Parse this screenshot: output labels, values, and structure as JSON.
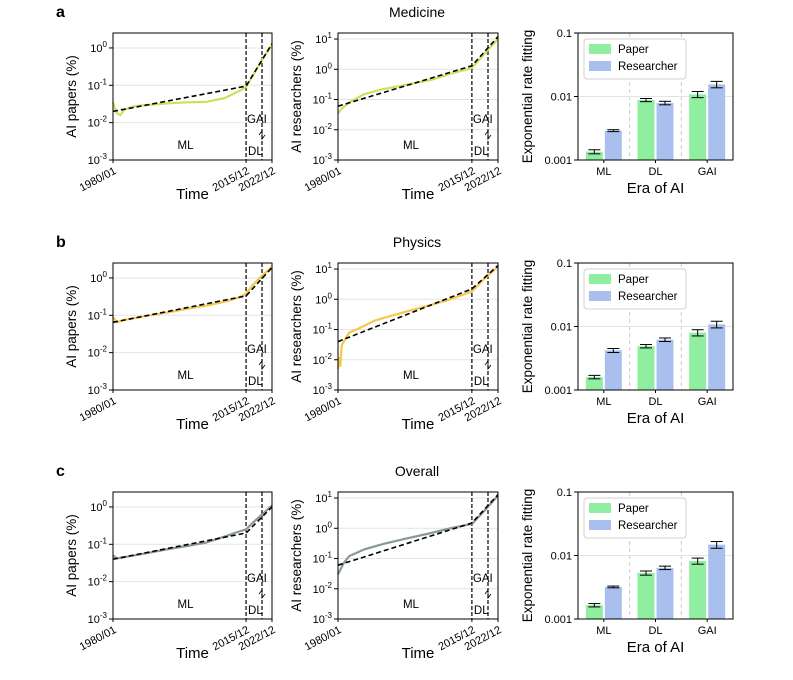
{
  "chart_data": [
    {
      "panel_label": "a",
      "row_title": "Medicine",
      "charts": [
        {
          "type": "line",
          "ylabel": "AI papers (%)",
          "xlabel": "Time",
          "x_tick_labels": [
            "1980/01",
            "2015/12",
            "2022/12"
          ],
          "y_tick_labels": [
            "10^-3",
            "10^-2",
            "10^-1",
            "10^0"
          ],
          "yscale": "log",
          "ylim_exp": [
            -3,
            0.4
          ],
          "eras": [
            "ML",
            "DL",
            "GAI"
          ],
          "color": "#c8e35a",
          "actual_x": [
            1980,
            1981,
            1982,
            1983,
            1986,
            1990,
            1995,
            2000,
            2005,
            2010,
            2014,
            2015.9,
            2018,
            2020,
            2022.9
          ],
          "actual_y": [
            0.035,
            0.018,
            0.016,
            0.022,
            0.028,
            0.03,
            0.033,
            0.035,
            0.036,
            0.045,
            0.07,
            0.09,
            0.2,
            0.45,
            1.2
          ],
          "fit_x": [
            1980,
            2015.9,
            2022.9
          ],
          "fit_y": [
            0.02,
            0.095,
            1.3
          ]
        },
        {
          "type": "line",
          "ylabel": "AI researchers (%)",
          "xlabel": "Time",
          "x_tick_labels": [
            "1980/01",
            "2015/12",
            "2022/12"
          ],
          "y_tick_labels": [
            "10^-3",
            "10^-2",
            "10^-1",
            "10^0",
            "10^1"
          ],
          "yscale": "log",
          "ylim_exp": [
            -3,
            1.2
          ],
          "eras": [
            "ML",
            "DL",
            "GAI"
          ],
          "color": "#c8e35a",
          "actual_x": [
            1980,
            1981,
            1983,
            1987,
            1992,
            1998,
            2005,
            2010,
            2015.9,
            2019,
            2022.9
          ],
          "actual_y": [
            0.035,
            0.05,
            0.08,
            0.15,
            0.22,
            0.3,
            0.45,
            0.7,
            1.1,
            3.0,
            10.0
          ],
          "fit_x": [
            1980,
            2015.9,
            2022.9
          ],
          "fit_y": [
            0.06,
            1.3,
            12.0
          ]
        },
        {
          "type": "bar",
          "ylabel": "Exponential rate fitting",
          "xlabel": "Era of AI",
          "categories": [
            "ML",
            "DL",
            "GAI"
          ],
          "y_tick_labels": [
            "0.001",
            "0.01",
            "0.1"
          ],
          "yscale": "log",
          "ylim": [
            0.001,
            0.1
          ],
          "legend": [
            "Paper",
            "Researcher"
          ],
          "series": [
            {
              "name": "Paper",
              "color": "#90eea0",
              "values": [
                0.00135,
                0.0088,
                0.0108
              ],
              "errors": [
                0.0001,
                0.0005,
                0.0012
              ]
            },
            {
              "name": "Researcher",
              "color": "#a9c0ee",
              "values": [
                0.0029,
                0.0079,
                0.0155
              ],
              "errors": [
                0.0001,
                0.0005,
                0.0018
              ]
            }
          ]
        }
      ]
    },
    {
      "panel_label": "b",
      "row_title": "Physics",
      "charts": [
        {
          "type": "line",
          "ylabel": "AI papers (%)",
          "xlabel": "Time",
          "x_tick_labels": [
            "1980/01",
            "2015/12",
            "2022/12"
          ],
          "y_tick_labels": [
            "10^-3",
            "10^-2",
            "10^-1",
            "10^0"
          ],
          "yscale": "log",
          "ylim_exp": [
            -3,
            0.4
          ],
          "eras": [
            "ML",
            "DL",
            "GAI"
          ],
          "color": "#f2c94c",
          "actual_x": [
            1980,
            1981,
            1983,
            1990,
            1995,
            2000,
            2005,
            2010,
            2014,
            2015.9,
            2018,
            2020,
            2022.9
          ],
          "actual_y": [
            0.09,
            0.065,
            0.075,
            0.1,
            0.12,
            0.15,
            0.18,
            0.23,
            0.3,
            0.38,
            0.7,
            1.1,
            2.0
          ],
          "fit_x": [
            1980,
            2015.9,
            2022.9
          ],
          "fit_y": [
            0.065,
            0.33,
            1.9
          ]
        },
        {
          "type": "line",
          "ylabel": "AI researchers (%)",
          "xlabel": "Time",
          "x_tick_labels": [
            "1980/01",
            "2015/12",
            "2022/12"
          ],
          "y_tick_labels": [
            "10^-3",
            "10^-2",
            "10^-1",
            "10^0",
            "10^1"
          ],
          "yscale": "log",
          "ylim_exp": [
            -3,
            1.2
          ],
          "eras": [
            "ML",
            "DL",
            "GAI"
          ],
          "color": "#f2c94c",
          "actual_x": [
            1980,
            1980.3,
            1980.6,
            1981,
            1982,
            1983,
            1985,
            1990,
            1995,
            2000,
            2005,
            2010,
            2015.9,
            2019,
            2022.9
          ],
          "actual_y": [
            0.005,
            0.012,
            0.006,
            0.03,
            0.05,
            0.08,
            0.1,
            0.2,
            0.3,
            0.45,
            0.65,
            1.0,
            1.8,
            4.5,
            12.0
          ],
          "fit_x": [
            1980,
            2015.9,
            2022.9
          ],
          "fit_y": [
            0.04,
            2.2,
            13.0
          ]
        },
        {
          "type": "bar",
          "ylabel": "Exponential rate fitting",
          "xlabel": "Era of AI",
          "categories": [
            "ML",
            "DL",
            "GAI"
          ],
          "y_tick_labels": [
            "0.001",
            "0.01",
            "0.1"
          ],
          "yscale": "log",
          "ylim": [
            0.001,
            0.1
          ],
          "legend": [
            "Paper",
            "Researcher"
          ],
          "series": [
            {
              "name": "Paper",
              "color": "#90eea0",
              "values": [
                0.0016,
                0.0049,
                0.008
              ],
              "errors": [
                0.0001,
                0.0003,
                0.0009
              ]
            },
            {
              "name": "Researcher",
              "color": "#a9c0ee",
              "values": [
                0.0042,
                0.0062,
                0.0108
              ],
              "errors": [
                0.0003,
                0.0004,
                0.0013
              ]
            }
          ]
        }
      ]
    },
    {
      "panel_label": "c",
      "row_title": "Overall",
      "charts": [
        {
          "type": "line",
          "ylabel": "AI papers (%)",
          "xlabel": "Time",
          "x_tick_labels": [
            "1980/01",
            "2015/12",
            "2022/12"
          ],
          "y_tick_labels": [
            "10^-3",
            "10^-2",
            "10^-1",
            "10^0"
          ],
          "yscale": "log",
          "ylim_exp": [
            -3,
            0.4
          ],
          "eras": [
            "ML",
            "DL",
            "GAI"
          ],
          "color": "#8a9a90",
          "actual_x": [
            1980,
            1981,
            1983,
            1990,
            1995,
            2000,
            2005,
            2010,
            2014,
            2015.9,
            2018,
            2020,
            2022.9
          ],
          "actual_y": [
            0.05,
            0.042,
            0.045,
            0.06,
            0.075,
            0.09,
            0.11,
            0.16,
            0.22,
            0.25,
            0.4,
            0.6,
            1.1
          ],
          "fit_x": [
            1980,
            2015.9,
            2022.9
          ],
          "fit_y": [
            0.04,
            0.2,
            1.0
          ]
        },
        {
          "type": "line",
          "ylabel": "AI researchers (%)",
          "xlabel": "Time",
          "x_tick_labels": [
            "1980/01",
            "2015/12",
            "2022/12"
          ],
          "y_tick_labels": [
            "10^-3",
            "10^-2",
            "10^-1",
            "10^0",
            "10^1"
          ],
          "yscale": "log",
          "ylim_exp": [
            -3,
            1.2
          ],
          "eras": [
            "ML",
            "DL",
            "GAI"
          ],
          "color": "#8a9a90",
          "actual_x": [
            1980,
            1980.5,
            1981.5,
            1983,
            1987,
            1992,
            1998,
            2005,
            2010,
            2015.9,
            2019,
            2022.9
          ],
          "actual_y": [
            0.03,
            0.04,
            0.07,
            0.12,
            0.2,
            0.3,
            0.45,
            0.7,
            1.0,
            1.4,
            3.5,
            12.0
          ],
          "fit_x": [
            1980,
            2015.9,
            2022.9
          ],
          "fit_y": [
            0.06,
            1.5,
            13.0
          ]
        },
        {
          "type": "bar",
          "ylabel": "Exponential rate fitting",
          "xlabel": "Era of AI",
          "categories": [
            "ML",
            "DL",
            "GAI"
          ],
          "y_tick_labels": [
            "0.001",
            "0.01",
            "0.1"
          ],
          "yscale": "log",
          "ylim": [
            0.001,
            0.1
          ],
          "legend": [
            "Paper",
            "Researcher"
          ],
          "series": [
            {
              "name": "Paper",
              "color": "#90eea0",
              "values": [
                0.00165,
                0.0053,
                0.0082
              ],
              "errors": [
                0.0001,
                0.0004,
                0.0009
              ]
            },
            {
              "name": "Researcher",
              "color": "#a9c0ee",
              "values": [
                0.0032,
                0.0064,
                0.0148
              ],
              "errors": [
                0.0001,
                0.0004,
                0.0018
              ]
            }
          ]
        }
      ]
    }
  ]
}
